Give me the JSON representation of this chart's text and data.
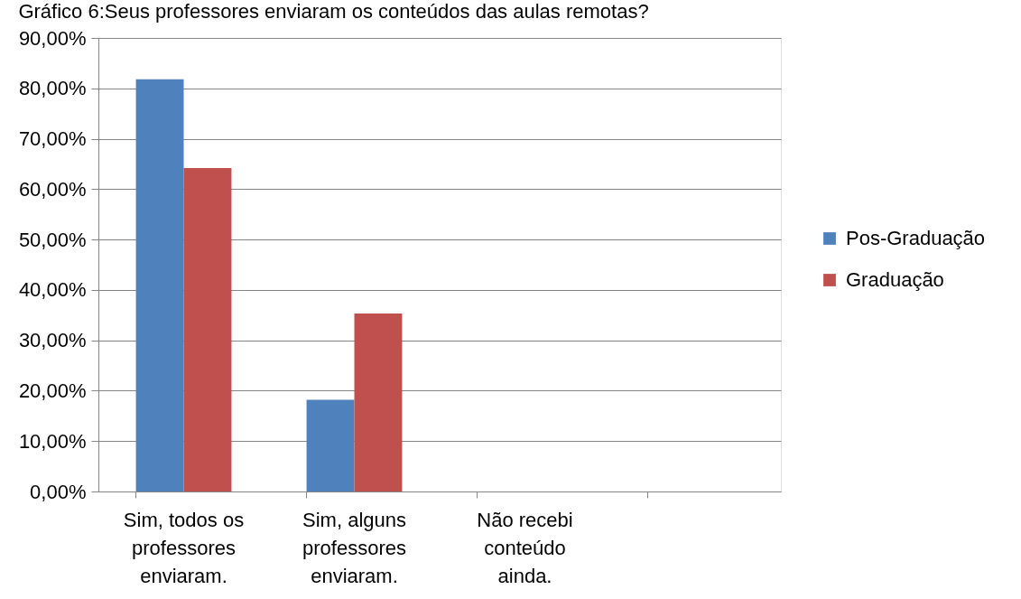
{
  "chart_data": {
    "type": "bar",
    "title": "Gráfico 6:Seus professores enviaram os conteúdos das aulas remotas?",
    "categories": [
      "Sim, todos os professores enviaram.",
      "Sim, alguns professores enviaram.",
      "Não recebi conteúdo ainda.",
      null
    ],
    "series": [
      {
        "name": "Pos-Graduação",
        "color": "#4f81bd",
        "values": [
          81.8,
          18.2,
          0,
          null
        ]
      },
      {
        "name": "Graduação",
        "color": "#c0504d",
        "values": [
          64.2,
          35.3,
          0,
          null
        ]
      }
    ],
    "ylim": [
      0,
      90
    ],
    "yticks": [
      {
        "value": 0,
        "label": "0,00%"
      },
      {
        "value": 10,
        "label": "10,00%"
      },
      {
        "value": 20,
        "label": "20,00%"
      },
      {
        "value": 30,
        "label": "30,00%"
      },
      {
        "value": 40,
        "label": "40,00%"
      },
      {
        "value": 50,
        "label": "50,00%"
      },
      {
        "value": 60,
        "label": "60,00%"
      },
      {
        "value": 70,
        "label": "70,00%"
      },
      {
        "value": 80,
        "label": "80,00%"
      },
      {
        "value": 90,
        "label": "90,00%"
      }
    ],
    "grid": "y",
    "legend": "right"
  }
}
